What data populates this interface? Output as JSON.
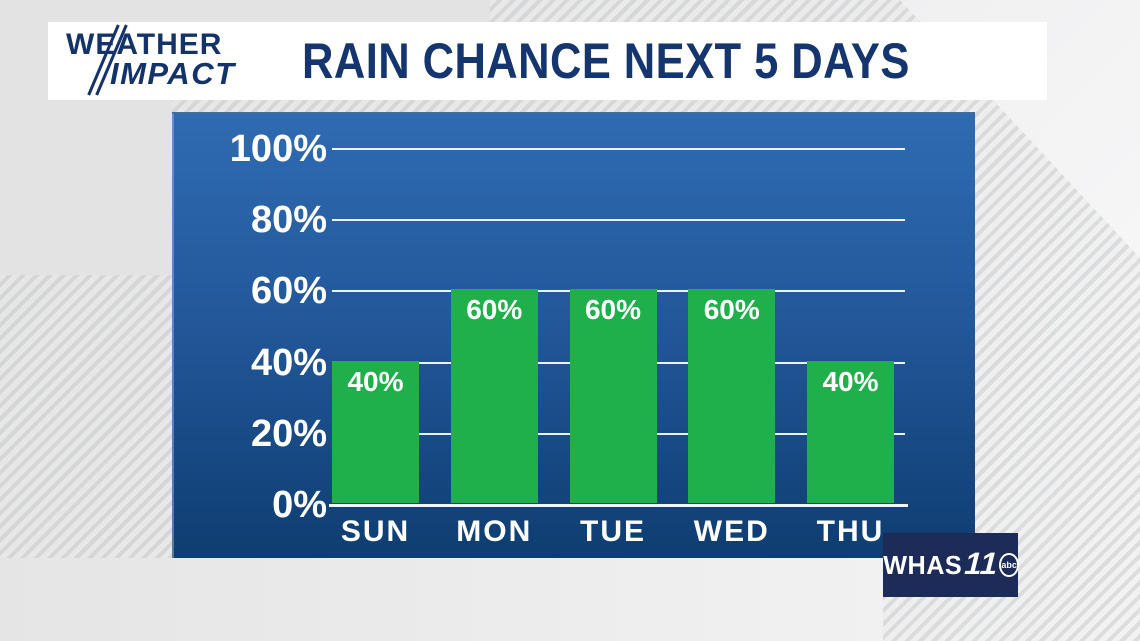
{
  "brand": {
    "line1": "WEATHER",
    "line2": "IMPACT"
  },
  "header": {
    "title": "RAIN CHANCE NEXT 5 DAYS"
  },
  "chart_data": {
    "type": "bar",
    "title": "RAIN CHANCE NEXT 5 DAYS",
    "categories": [
      "SUN",
      "MON",
      "TUE",
      "WED",
      "THU"
    ],
    "values": [
      40,
      60,
      60,
      60,
      40
    ],
    "bar_labels": [
      "40%",
      "60%",
      "60%",
      "60%",
      "40%"
    ],
    "yticks": [
      {
        "value": 100,
        "label": "100%"
      },
      {
        "value": 80,
        "label": "80%"
      },
      {
        "value": 60,
        "label": "60%"
      },
      {
        "value": 40,
        "label": "40%"
      },
      {
        "value": 20,
        "label": "20%"
      },
      {
        "value": 0,
        "label": "0%"
      }
    ],
    "ylim": [
      0,
      100
    ],
    "grid": true,
    "legend": false,
    "xlabel": "",
    "ylabel": "",
    "colors": {
      "bar": "#1fb04c",
      "panel_top": "#2f6bb2",
      "panel_bottom": "#0e3d71",
      "gridline": "#ffffff",
      "tick_label": "#ffffff",
      "bar_label": "#ffffff",
      "title_navy": "#14356e"
    }
  },
  "station": {
    "callsign": "WHAS",
    "channel": "11",
    "network": "abc"
  }
}
